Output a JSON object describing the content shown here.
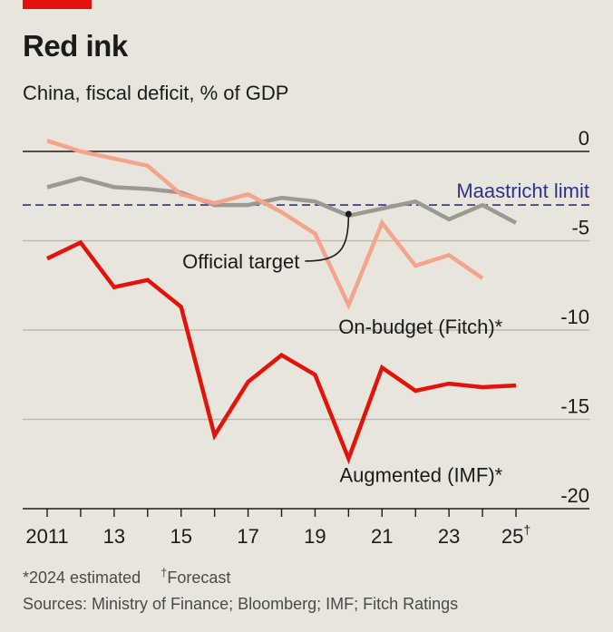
{
  "header": {
    "title": "Red ink",
    "subtitle": "China, fiscal deficit, % of GDP"
  },
  "footer": {
    "note_estimated": "*2024 estimated",
    "note_forecast_mark": "†",
    "note_forecast": "Forecast",
    "sources": "Sources: Ministry of Finance; Bloomberg; IMF; Fitch Ratings"
  },
  "colors": {
    "accent": "#e3120b",
    "augmented": "#e3120b",
    "fitch": "#f4a48a",
    "official": "#9c9a90",
    "maastricht": "#2e3192",
    "background": "#e8e5dc"
  },
  "chart_data": {
    "type": "line",
    "x": [
      2011,
      2012,
      2013,
      2014,
      2015,
      2016,
      2017,
      2018,
      2019,
      2020,
      2021,
      2022,
      2023,
      2024,
      2025
    ],
    "x_tick_labels": [
      {
        "x": 2011,
        "label": "2011"
      },
      {
        "x": 2013,
        "label": "13"
      },
      {
        "x": 2015,
        "label": "15"
      },
      {
        "x": 2017,
        "label": "17"
      },
      {
        "x": 2019,
        "label": "19"
      },
      {
        "x": 2021,
        "label": "21"
      },
      {
        "x": 2023,
        "label": "23"
      },
      {
        "x": 2025,
        "label": "25",
        "mark": "†"
      }
    ],
    "y_ticks": [
      0,
      -5,
      -10,
      -15,
      -20
    ],
    "y_tick_labels": [
      "0",
      "-5",
      "-10",
      "-15",
      "-20"
    ],
    "ylim": [
      -20,
      0.8
    ],
    "xlim": [
      2011,
      2025
    ],
    "grid": true,
    "reference_line": {
      "value": -3,
      "label": "Maastricht limit"
    },
    "annotation": {
      "text": "Official target",
      "x": 2020,
      "y": -3.5
    },
    "series": [
      {
        "name": "Official target",
        "color": "#9c9a90",
        "x": [
          2011,
          2012,
          2013,
          2014,
          2015,
          2016,
          2017,
          2018,
          2019,
          2020,
          2021,
          2022,
          2023,
          2024,
          2025
        ],
        "values": [
          -2.0,
          -1.5,
          -2.0,
          -2.1,
          -2.3,
          -3.0,
          -3.0,
          -2.6,
          -2.8,
          -3.6,
          -3.2,
          -2.8,
          -3.8,
          -3.0,
          -4.0
        ]
      },
      {
        "name": "On-budget (Fitch)*",
        "color": "#f4a48a",
        "x": [
          2011,
          2012,
          2013,
          2014,
          2015,
          2016,
          2017,
          2018,
          2019,
          2020,
          2021,
          2022,
          2023,
          2024
        ],
        "values": [
          0.6,
          0.0,
          -0.4,
          -0.8,
          -2.4,
          -2.9,
          -2.4,
          -3.4,
          -4.6,
          -8.6,
          -4.0,
          -6.4,
          -5.8,
          -7.1
        ]
      },
      {
        "name": "Augmented (IMF)*",
        "color": "#e3120b",
        "x": [
          2011,
          2012,
          2013,
          2014,
          2015,
          2016,
          2017,
          2018,
          2019,
          2020,
          2021,
          2022,
          2023,
          2024,
          2025
        ],
        "values": [
          -6.0,
          -5.1,
          -7.6,
          -7.2,
          -8.7,
          -15.9,
          -12.9,
          -11.4,
          -12.5,
          -17.2,
          -12.1,
          -13.4,
          -13.0,
          -13.2,
          -13.1
        ]
      }
    ]
  }
}
